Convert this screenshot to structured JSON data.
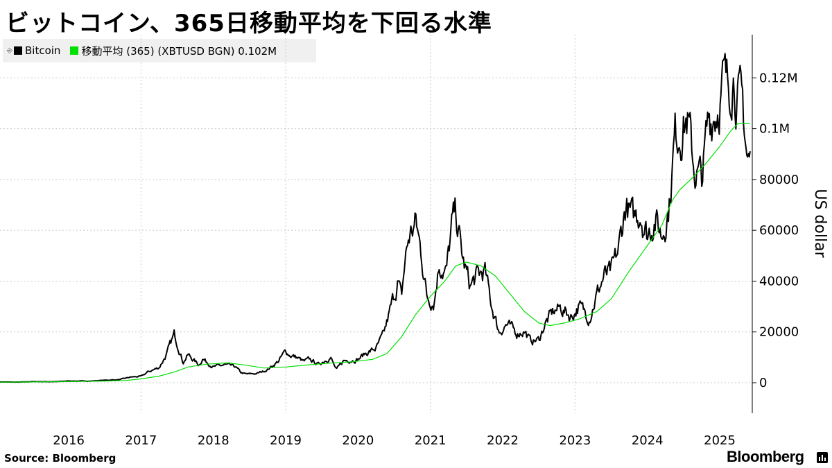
{
  "title": "ビットコイン、365日移動平均を下回る水準",
  "legend": {
    "series": [
      {
        "label": "Bitcoin",
        "color": "#000000"
      },
      {
        "label": "移動平均 (365) (XBTUSD BGN) 0.102M",
        "color": "#00e000"
      }
    ]
  },
  "source": "Source: Bloomberg",
  "brand": "Bloomberg",
  "chart_data": {
    "type": "line",
    "ylabel": "US dollar",
    "ylim": [
      -12000,
      137000
    ],
    "xlim": [
      2015.55,
      2025.95
    ],
    "y_ticks": [
      0,
      20000,
      40000,
      60000,
      80000,
      100000,
      120000
    ],
    "y_tick_labels": [
      "0",
      "20000",
      "40000",
      "60000",
      "80000",
      "0.1M",
      "0.12M"
    ],
    "x_ticks": [
      2016,
      2017,
      2018,
      2019,
      2020,
      2021,
      2022,
      2023,
      2024,
      2025
    ],
    "x_tick_labels": [
      "2016",
      "2017",
      "2018",
      "2019",
      "2020",
      "2021",
      "2022",
      "2023",
      "2024",
      "2025"
    ],
    "x_gridlines": [
      2017.5,
      2019.5,
      2021.5,
      2023.5
    ],
    "grid": true,
    "series": [
      {
        "name": "Bitcoin",
        "color": "#000000",
        "points": [
          [
            2015.55,
            300
          ],
          [
            2015.8,
            250
          ],
          [
            2016.0,
            430
          ],
          [
            2016.3,
            420
          ],
          [
            2016.5,
            680
          ],
          [
            2016.8,
            650
          ],
          [
            2017.0,
            1000
          ],
          [
            2017.2,
            1200
          ],
          [
            2017.35,
            2200
          ],
          [
            2017.5,
            2500
          ],
          [
            2017.6,
            4300
          ],
          [
            2017.75,
            6000
          ],
          [
            2017.85,
            11000
          ],
          [
            2017.96,
            19000
          ],
          [
            2018.02,
            14000
          ],
          [
            2018.08,
            8000
          ],
          [
            2018.15,
            11000
          ],
          [
            2018.3,
            7000
          ],
          [
            2018.35,
            9500
          ],
          [
            2018.5,
            6200
          ],
          [
            2018.65,
            7000
          ],
          [
            2018.8,
            6400
          ],
          [
            2018.88,
            4000
          ],
          [
            2018.95,
            3400
          ],
          [
            2019.1,
            3600
          ],
          [
            2019.25,
            5200
          ],
          [
            2019.4,
            8500
          ],
          [
            2019.5,
            12500
          ],
          [
            2019.55,
            11000
          ],
          [
            2019.65,
            10000
          ],
          [
            2019.75,
            8300
          ],
          [
            2019.83,
            9200
          ],
          [
            2019.95,
            7200
          ],
          [
            2020.05,
            9000
          ],
          [
            2020.12,
            10000
          ],
          [
            2020.2,
            5000
          ],
          [
            2020.3,
            8700
          ],
          [
            2020.5,
            9200
          ],
          [
            2020.6,
            11500
          ],
          [
            2020.75,
            13500
          ],
          [
            2020.85,
            18500
          ],
          [
            2020.95,
            29000
          ],
          [
            2021.05,
            40000
          ],
          [
            2021.1,
            33000
          ],
          [
            2021.15,
            48000
          ],
          [
            2021.2,
            57000
          ],
          [
            2021.3,
            63000
          ],
          [
            2021.38,
            50000
          ],
          [
            2021.45,
            34000
          ],
          [
            2021.55,
            32000
          ],
          [
            2021.62,
            47000
          ],
          [
            2021.72,
            43000
          ],
          [
            2021.8,
            62000
          ],
          [
            2021.85,
            67000
          ],
          [
            2021.95,
            48000
          ],
          [
            2022.05,
            38000
          ],
          [
            2022.15,
            42000
          ],
          [
            2022.25,
            44000
          ],
          [
            2022.35,
            30000
          ],
          [
            2022.45,
            20000
          ],
          [
            2022.55,
            23000
          ],
          [
            2022.7,
            19500
          ],
          [
            2022.8,
            20500
          ],
          [
            2022.88,
            16500
          ],
          [
            2023.0,
            16800
          ],
          [
            2023.08,
            23000
          ],
          [
            2023.2,
            28000
          ],
          [
            2023.3,
            29500
          ],
          [
            2023.45,
            26000
          ],
          [
            2023.55,
            30000
          ],
          [
            2023.7,
            26000
          ],
          [
            2023.8,
            34500
          ],
          [
            2023.9,
            42000
          ],
          [
            2024.0,
            43000
          ],
          [
            2024.1,
            52000
          ],
          [
            2024.2,
            70000
          ],
          [
            2024.3,
            64000
          ],
          [
            2024.4,
            68000
          ],
          [
            2024.5,
            58000
          ],
          [
            2024.6,
            65000
          ],
          [
            2024.7,
            58000
          ],
          [
            2024.8,
            70000
          ],
          [
            2024.88,
            97000
          ],
          [
            2024.95,
            100000
          ],
          [
            2025.05,
            104000
          ],
          [
            2025.15,
            84000
          ],
          [
            2025.25,
            80000
          ],
          [
            2025.35,
            104000
          ],
          [
            2025.45,
            108000
          ],
          [
            2025.55,
            118000
          ],
          [
            2025.62,
            116000
          ],
          [
            2025.68,
            124000
          ],
          [
            2025.75,
            112000
          ],
          [
            2025.82,
            108000
          ],
          [
            2025.88,
            88000
          ],
          [
            2025.92,
            87000
          ]
        ]
      },
      {
        "name": "移動平均 (365) (XBTUSD BGN) 0.102M",
        "color": "#00e000",
        "points": [
          [
            2015.55,
            230
          ],
          [
            2016.0,
            300
          ],
          [
            2016.5,
            450
          ],
          [
            2017.0,
            650
          ],
          [
            2017.3,
            900
          ],
          [
            2017.5,
            1500
          ],
          [
            2017.75,
            2600
          ],
          [
            2017.96,
            4200
          ],
          [
            2018.15,
            6200
          ],
          [
            2018.4,
            7300
          ],
          [
            2018.7,
            7800
          ],
          [
            2018.95,
            6900
          ],
          [
            2019.2,
            5800
          ],
          [
            2019.5,
            6200
          ],
          [
            2019.8,
            7000
          ],
          [
            2020.1,
            7700
          ],
          [
            2020.4,
            8200
          ],
          [
            2020.7,
            9200
          ],
          [
            2020.9,
            11500
          ],
          [
            2021.1,
            18000
          ],
          [
            2021.3,
            27000
          ],
          [
            2021.5,
            34000
          ],
          [
            2021.7,
            40000
          ],
          [
            2021.85,
            46000
          ],
          [
            2022.0,
            47500
          ],
          [
            2022.2,
            46000
          ],
          [
            2022.4,
            42000
          ],
          [
            2022.6,
            35000
          ],
          [
            2022.8,
            28000
          ],
          [
            2023.0,
            23500
          ],
          [
            2023.15,
            22500
          ],
          [
            2023.35,
            23500
          ],
          [
            2023.55,
            25000
          ],
          [
            2023.8,
            28000
          ],
          [
            2024.0,
            33000
          ],
          [
            2024.25,
            44000
          ],
          [
            2024.5,
            54000
          ],
          [
            2024.7,
            62000
          ],
          [
            2024.85,
            72000
          ],
          [
            2024.95,
            76000
          ],
          [
            2025.1,
            80000
          ],
          [
            2025.3,
            86000
          ],
          [
            2025.5,
            93000
          ],
          [
            2025.65,
            99000
          ],
          [
            2025.75,
            102000
          ],
          [
            2025.92,
            102000
          ]
        ]
      }
    ]
  }
}
